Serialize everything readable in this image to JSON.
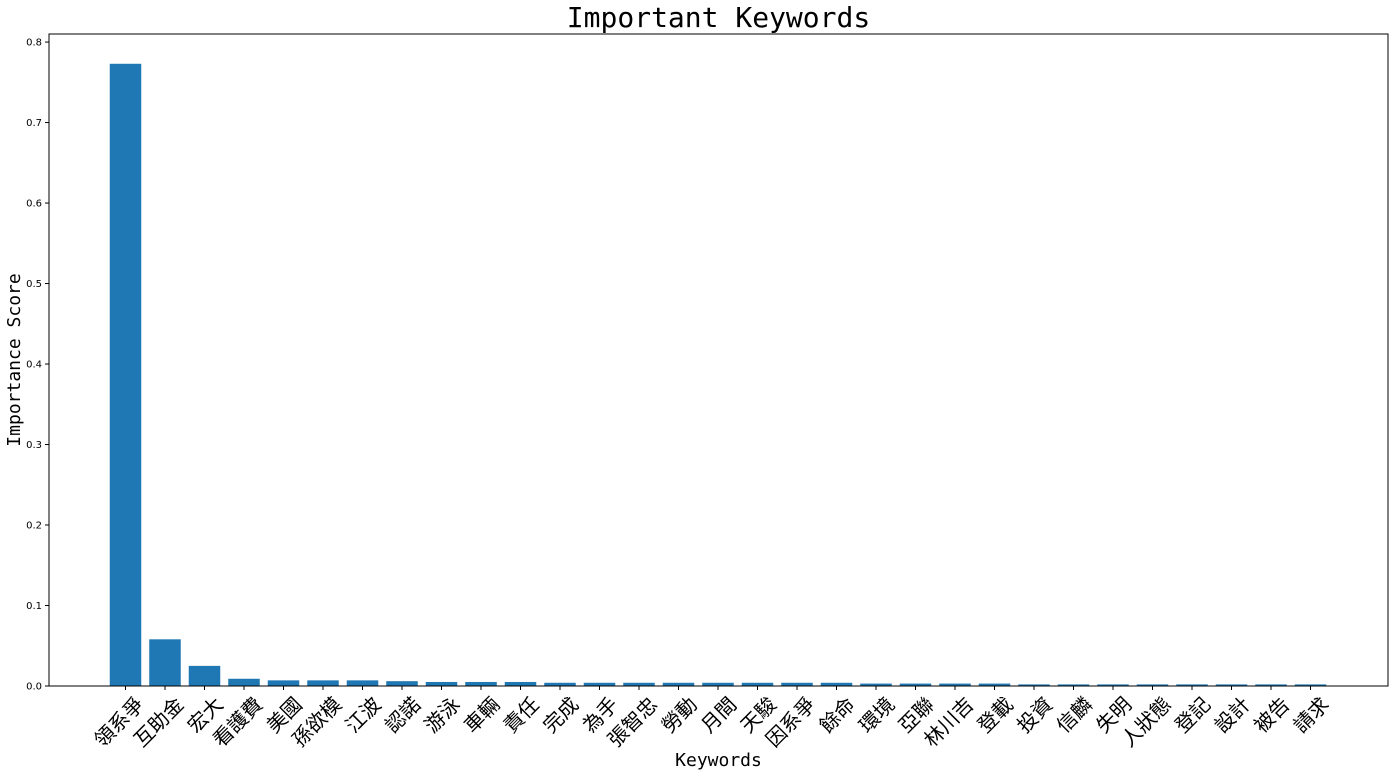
{
  "chart_data": {
    "type": "bar",
    "title": "Important Keywords",
    "xlabel": "Keywords",
    "ylabel": "Importance Score",
    "ylim": [
      0,
      0.81
    ],
    "yticks": [
      0.0,
      0.1,
      0.2,
      0.3,
      0.4,
      0.5,
      0.6,
      0.7,
      0.8
    ],
    "ytick_labels": [
      "0.0",
      "0.1",
      "0.2",
      "0.3",
      "0.4",
      "0.5",
      "0.6",
      "0.7",
      "0.8"
    ],
    "grid": false,
    "bar_color": "#1f77b4",
    "categories": [
      "領系爭",
      "互助金",
      "宏大",
      "看護費",
      "美國",
      "孫欲模",
      "江波",
      "認諾",
      "游泳",
      "車輛",
      "責任",
      "完成",
      "為手",
      "張智忠",
      "勞動",
      "月間",
      "天駿",
      "因系爭",
      "餘命",
      "環境",
      "亞聯",
      "林川吉",
      "登載",
      "投資",
      "信麟",
      "失明",
      "人狀態",
      "登記",
      "設計",
      "被告",
      "請求"
    ],
    "values": [
      0.773,
      0.058,
      0.025,
      0.009,
      0.007,
      0.007,
      0.007,
      0.006,
      0.005,
      0.005,
      0.005,
      0.004,
      0.004,
      0.004,
      0.004,
      0.004,
      0.004,
      0.004,
      0.004,
      0.003,
      0.003,
      0.003,
      0.003,
      0.002,
      0.002,
      0.002,
      0.002,
      0.002,
      0.002,
      0.002,
      0.002
    ]
  }
}
